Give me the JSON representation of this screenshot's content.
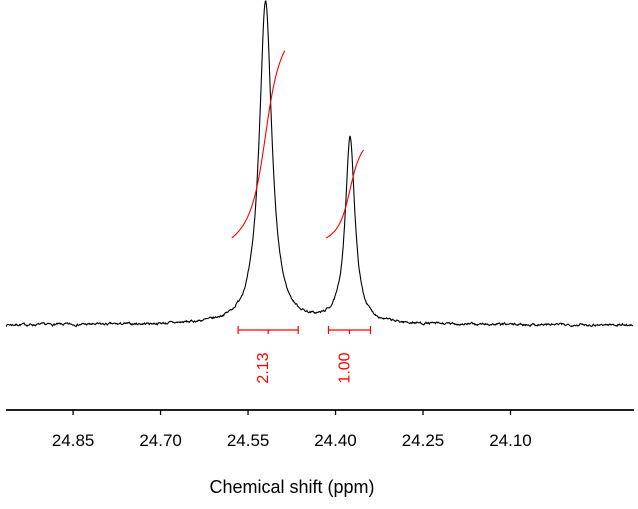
{
  "chart_data": {
    "type": "line",
    "kind": "nmr-spectrum",
    "title": "",
    "xlabel": "Chemical shift (ppm)",
    "series_color": "#000000",
    "integral_color": "#ff0000",
    "x_axis": {
      "unit": "ppm",
      "direction": "descending",
      "xlim": [
        24.965,
        23.89
      ],
      "ticks": [
        "24.85",
        "24.70",
        "24.55",
        "24.40",
        "24.25",
        "24.10"
      ]
    },
    "peaks": [
      {
        "ppm": 24.52,
        "rel_height": 1.0,
        "hwhm_ppm": 0.013,
        "integral_label": "2.13",
        "integral_value": 2.13,
        "integral_region_ppm": [
          24.567,
          24.464
        ],
        "curve_region_ppm": [
          24.578,
          24.487
        ]
      },
      {
        "ppm": 24.375,
        "rel_height": 0.575,
        "hwhm_ppm": 0.01,
        "integral_label": "1.00",
        "integral_value": 1.0,
        "integral_region_ppm": [
          24.412,
          24.34
        ],
        "curve_region_ppm": [
          24.416,
          24.352
        ]
      }
    ]
  }
}
